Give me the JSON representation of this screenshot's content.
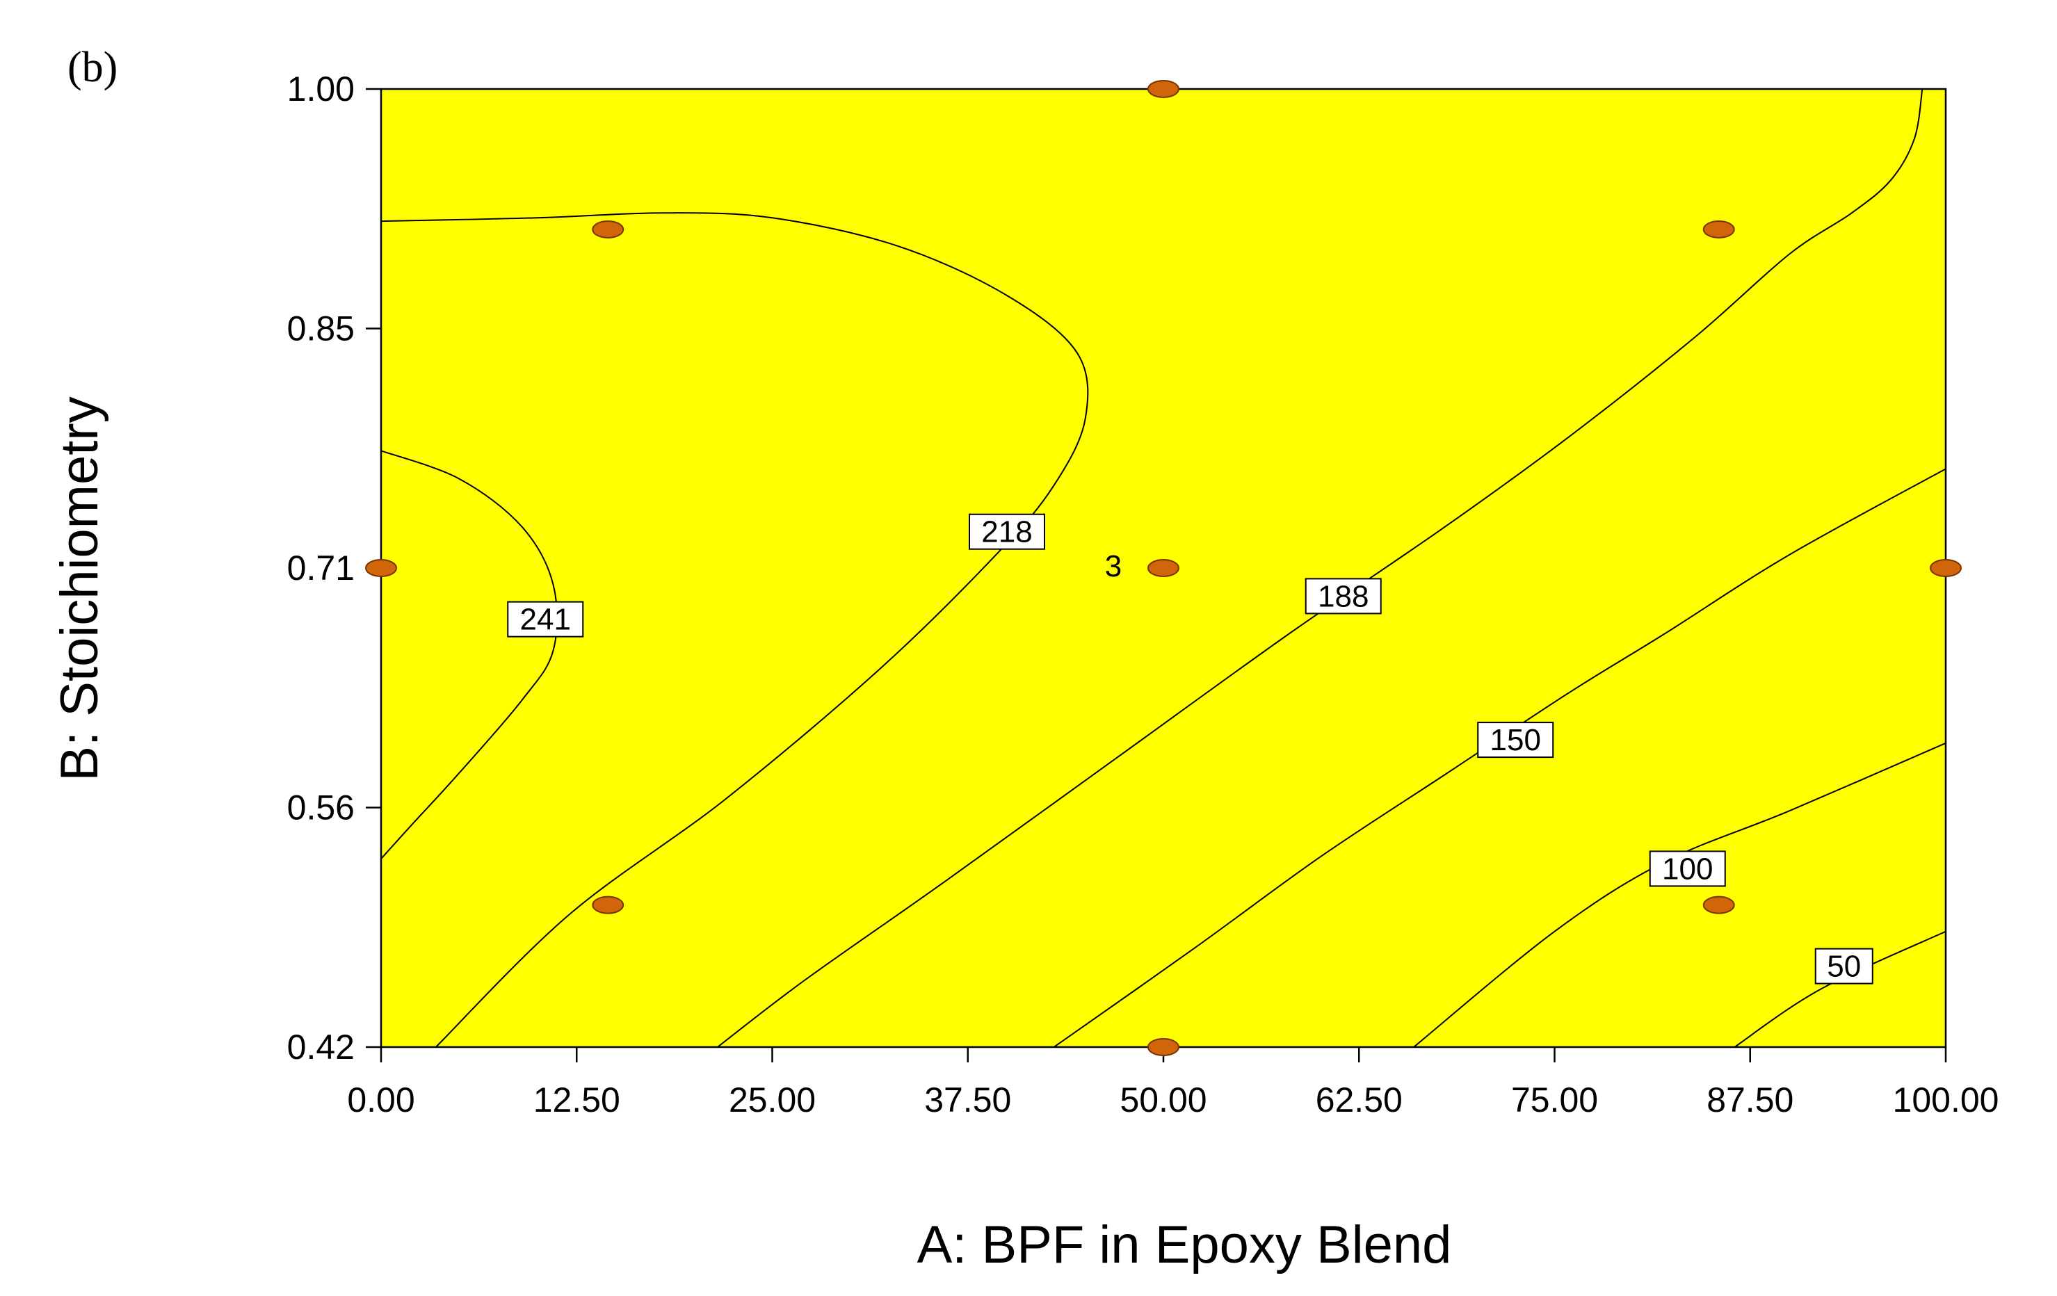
{
  "panel_label": "(b)",
  "colors": {
    "fill": "#ffff00",
    "point": "#d0650a",
    "point_outline": "#7a3300",
    "line": "#000000"
  },
  "chart_data": {
    "type": "contour",
    "xlabel": "A: BPF in Epoxy Blend",
    "ylabel": "B: Stoichiometry",
    "xlim": [
      0,
      100
    ],
    "ylim": [
      0.42,
      1.0
    ],
    "x_ticks": [
      "0.00",
      "12.50",
      "25.00",
      "37.50",
      "50.00",
      "62.50",
      "75.00",
      "87.50",
      "100.00"
    ],
    "y_ticks": [
      "0.42",
      "0.56",
      "0.71",
      "0.85",
      "1.00"
    ],
    "y_tick_values": [
      0.42,
      0.565,
      0.71,
      0.855,
      1.0
    ],
    "contours": [
      {
        "level": "241",
        "label_at": [
          10.5,
          0.679
        ],
        "points": [
          [
            0,
            0.781
          ],
          [
            5,
            0.764
          ],
          [
            9,
            0.735
          ],
          [
            11,
            0.7
          ],
          [
            11,
            0.66
          ],
          [
            9,
            0.63
          ],
          [
            5,
            0.586
          ],
          [
            2,
            0.555
          ],
          [
            0,
            0.534
          ]
        ]
      },
      {
        "level": "218",
        "label_at": [
          40,
          0.732
        ],
        "points": [
          [
            0,
            0.92
          ],
          [
            10,
            0.922
          ],
          [
            18,
            0.925
          ],
          [
            25,
            0.922
          ],
          [
            33,
            0.905
          ],
          [
            40,
            0.875
          ],
          [
            44.5,
            0.84
          ],
          [
            45,
            0.8
          ],
          [
            43,
            0.76
          ],
          [
            39.5,
            0.72
          ],
          [
            32,
            0.65
          ],
          [
            22,
            0.57
          ],
          [
            12,
            0.5
          ],
          [
            3.5,
            0.42
          ]
        ]
      },
      {
        "level": "188",
        "label_at": [
          61.5,
          0.693
        ],
        "points": [
          [
            98.5,
            1.0
          ],
          [
            98,
            0.97
          ],
          [
            96.5,
            0.945
          ],
          [
            94,
            0.925
          ],
          [
            90,
            0.9
          ],
          [
            84,
            0.85
          ],
          [
            76,
            0.79
          ],
          [
            68,
            0.735
          ],
          [
            58,
            0.67
          ],
          [
            47,
            0.595
          ],
          [
            36,
            0.52
          ],
          [
            27,
            0.46
          ],
          [
            21.5,
            0.42
          ]
        ]
      },
      {
        "level": "150",
        "label_at": [
          72.5,
          0.606
        ],
        "points": [
          [
            100,
            0.77
          ],
          [
            90,
            0.718
          ],
          [
            82,
            0.67
          ],
          [
            76,
            0.635
          ],
          [
            68,
            0.585
          ],
          [
            60,
            0.535
          ],
          [
            52,
            0.48
          ],
          [
            43,
            0.42
          ]
        ]
      },
      {
        "level": "100",
        "label_at": [
          83.5,
          0.528
        ],
        "points": [
          [
            100,
            0.604
          ],
          [
            90,
            0.563
          ],
          [
            82,
            0.532
          ],
          [
            75,
            0.49
          ],
          [
            66,
            0.42
          ]
        ]
      },
      {
        "level": "50",
        "label_at": [
          93.5,
          0.469
        ],
        "points": [
          [
            100,
            0.49
          ],
          [
            92,
            0.455
          ],
          [
            86.5,
            0.42
          ]
        ]
      }
    ],
    "design_points": [
      [
        0,
        0.71
      ],
      [
        14.5,
        0.915
      ],
      [
        14.5,
        0.506
      ],
      [
        50,
        1.0
      ],
      [
        50,
        0.71
      ],
      [
        50,
        0.42
      ],
      [
        85.5,
        0.915
      ],
      [
        85.5,
        0.506
      ],
      [
        100,
        0.71
      ]
    ],
    "annotations": [
      {
        "text": "3",
        "at": [
          48.5,
          0.71
        ]
      }
    ]
  }
}
